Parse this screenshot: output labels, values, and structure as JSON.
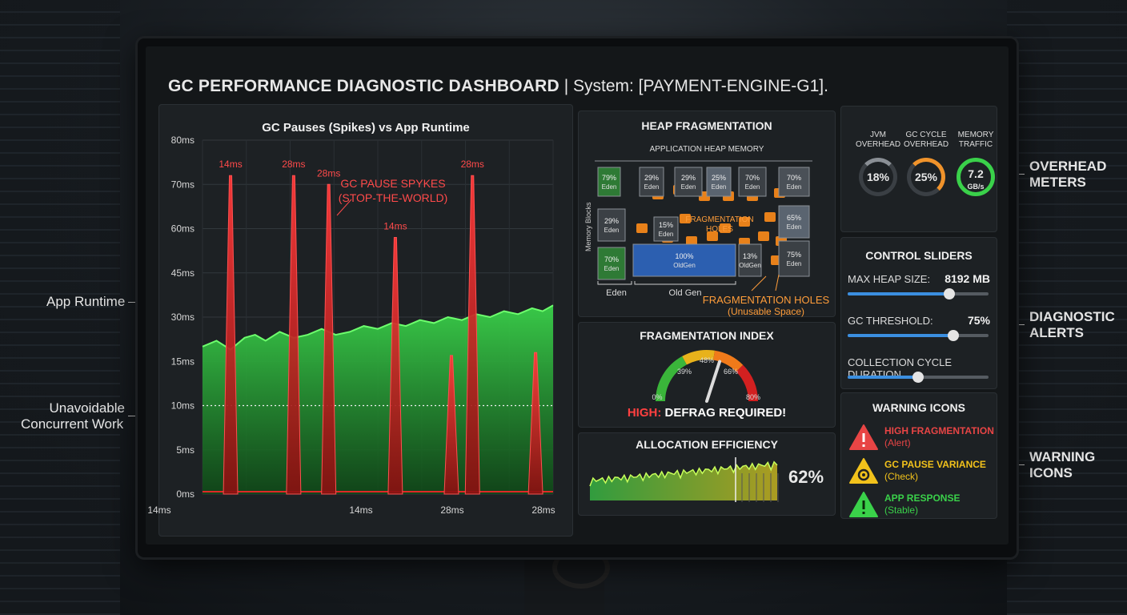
{
  "header": {
    "title_bold": "GC PERFORMANCE DIAGNOSTIC DASHBOARD",
    "title_rest": "| System: [PAYMENT-ENGINE-G1]."
  },
  "callouts": {
    "app_runtime": "App Runtime",
    "concurrent_work_1": "Unavoidable",
    "concurrent_work_2": "Concurrent Work",
    "overhead_meters_1": "OVERHEAD",
    "overhead_meters_2": "METERS",
    "diagnostic_alerts_1": "DIAGNOSTIC",
    "diagnostic_alerts_2": "ALERTS",
    "warning_icons_1": "WARNING",
    "warning_icons_2": "ICONS"
  },
  "chart_data": {
    "type": "line",
    "title": "GC Pauses (Spikes) vs App Runtime",
    "y_ticks": [
      "0ms",
      "5ms",
      "10ms",
      "15ms",
      "30ms",
      "45ms",
      "60ms",
      "70ms",
      "80ms"
    ],
    "x_ticks": [
      "14ms",
      "14ms",
      "28ms",
      "28ms"
    ],
    "grid": true,
    "annotation_line1": "GC PAUSE SPYKES",
    "annotation_line2": "(STOP-THE-WORLD)",
    "series": [
      {
        "name": "App Runtime",
        "color": "#3ad14a",
        "x": [
          0,
          4,
          8,
          12,
          15,
          18,
          22,
          26,
          30,
          34,
          38,
          42,
          46,
          50,
          54,
          58,
          62,
          66,
          70,
          74,
          78,
          82,
          86,
          90,
          94,
          97,
          100
        ],
        "values": [
          20,
          22,
          19,
          23,
          24,
          22,
          25,
          23,
          24,
          26,
          24,
          25,
          27,
          26,
          28,
          27,
          29,
          28,
          30,
          29,
          31,
          30,
          32,
          31,
          33,
          32,
          34
        ]
      },
      {
        "name": "GC Pauses",
        "color": "#e02828",
        "spikes": [
          {
            "x": 8,
            "value": 72,
            "label": "14ms"
          },
          {
            "x": 26,
            "value": 72,
            "label": "28ms"
          },
          {
            "x": 36,
            "value": 70,
            "label": "28ms"
          },
          {
            "x": 55,
            "value": 57,
            "label": "14ms"
          },
          {
            "x": 77,
            "value": 72,
            "label": "28ms"
          },
          {
            "x": 71,
            "value": 17,
            "label": ""
          },
          {
            "x": 95,
            "value": 18,
            "label": ""
          }
        ]
      }
    ],
    "threshold": {
      "value": 10,
      "style": "dotted"
    }
  },
  "heap": {
    "title": "HEAP FRAGMENTATION",
    "caption": "APPLICATION HEAP MEMORY",
    "y_axis": "Memory Blocks",
    "blocks": [
      {
        "pct": "79%",
        "gen": "Eden",
        "color": "#2e7a35"
      },
      {
        "pct": "29%",
        "gen": "Eden",
        "color": "#3b4045"
      },
      {
        "pct": "29%",
        "gen": "Eden",
        "color": "#3b4045"
      },
      {
        "pct": "25%",
        "gen": "Eden",
        "color": "#5a6470"
      },
      {
        "pct": "70%",
        "gen": "Eden",
        "color": "#3b4045"
      },
      {
        "pct": "70%",
        "gen": "Eden",
        "color": "#4a5057"
      },
      {
        "pct": "29%",
        "gen": "Eden",
        "color": "#3b4045"
      },
      {
        "pct": "15%",
        "gen": "Eden",
        "color": "#3b4045"
      },
      {
        "pct": "65%",
        "gen": "Eden",
        "color": "#5a6470"
      },
      {
        "pct": "70%",
        "gen": "Eden",
        "color": "#2e7a35"
      },
      {
        "pct": "100%",
        "gen": "OldGen",
        "color": "#2c5fb0"
      },
      {
        "pct": "13%",
        "gen": "OldGen",
        "color": "#3b4045"
      },
      {
        "pct": "75%",
        "gen": "Eden",
        "color": "#3b4045"
      }
    ],
    "holes_label_1": "FRAGMENTATION",
    "holes_label_2": "HOLES",
    "bracket_eden": "Eden",
    "bracket_oldgen": "Old Gen",
    "callout_1": "FRAGMENTATION HOLES",
    "callout_2": "(Unusable Space)"
  },
  "frag_index": {
    "title": "FRAGMENTATION INDEX",
    "gauge_value": 48,
    "labels": [
      "0%",
      "39%",
      "48%",
      "66%",
      "80%"
    ],
    "alert_prefix": "HIGH:",
    "alert_text": "DEFRAG REQUIRED!"
  },
  "alloc": {
    "title": "ALLOCATION EFFICIENCY",
    "value": "62%"
  },
  "meters": [
    {
      "label1": "JVM",
      "label2": "OVERHEAD",
      "value": "18%",
      "level": 0.18,
      "color": "#8a8f95"
    },
    {
      "label1": "GC CYCLE",
      "label2": "OVERHEAD",
      "value": "25%",
      "level": 0.25,
      "color": "#f0932b"
    },
    {
      "label1": "MEMORY",
      "label2": "TRAFFIC",
      "value": "7.2",
      "unit": "GB/s",
      "level": 0.85,
      "color": "#3ad14a"
    }
  ],
  "sliders": {
    "title": "CONTROL SLIDERS",
    "items": [
      {
        "label": "MAX HEAP SIZE:",
        "value": "8192 MB",
        "level": 0.72
      },
      {
        "label": "GC THRESHOLD:",
        "value": "75%",
        "level": 0.75
      },
      {
        "label": "COLLECTION CYCLE DURATION",
        "value": "",
        "level": 0.5
      }
    ]
  },
  "warnings": {
    "title": "WARNING ICONS",
    "items": [
      {
        "label": "HIGH FRAGMENTATION",
        "sub": "(Alert)",
        "color": "#e84545",
        "icon": "alert-triangle-icon"
      },
      {
        "label": "GC PAUSE VARIANCE",
        "sub": "(Check)",
        "color": "#f2c21b",
        "icon": "gear-warning-icon"
      },
      {
        "label": "APP RESPONSE",
        "sub": "(Stable)",
        "color": "#3ad14a",
        "icon": "check-triangle-icon"
      }
    ]
  }
}
